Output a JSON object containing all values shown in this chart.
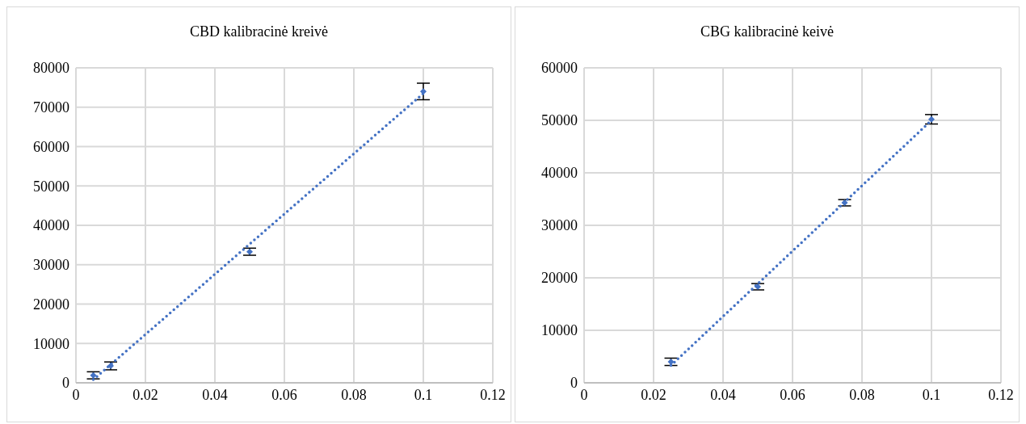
{
  "chart_data": [
    {
      "type": "scatter",
      "title": "CBD kalibracinė kreivė",
      "xlim": [
        0,
        0.12
      ],
      "xticks": [
        0,
        0.02,
        0.04,
        0.06,
        0.08,
        0.1,
        0.12
      ],
      "ylim": [
        0,
        80000
      ],
      "yticks": [
        0,
        10000,
        20000,
        30000,
        40000,
        50000,
        60000,
        70000,
        80000
      ],
      "grid": true,
      "legend": false,
      "series": [
        {
          "type": "scatter",
          "color": "#4472c4",
          "marker": "diamond",
          "x": [
            0.005,
            0.01,
            0.05,
            0.1
          ],
          "values": [
            1900,
            4300,
            33300,
            74000
          ],
          "errors": [
            900,
            1000,
            900,
            2100
          ]
        },
        {
          "type": "line",
          "color": "#4472c4",
          "line_style": "dotted",
          "marker": "none",
          "x": [
            0.005,
            0.1
          ],
          "values": [
            800,
            73500
          ]
        }
      ]
    },
    {
      "type": "scatter",
      "title": "CBG kalibracinė keivė",
      "xlim": [
        0,
        0.12
      ],
      "xticks": [
        0,
        0.02,
        0.04,
        0.06,
        0.08,
        0.1,
        0.12
      ],
      "ylim": [
        0,
        60000
      ],
      "yticks": [
        0,
        10000,
        20000,
        30000,
        40000,
        50000,
        60000
      ],
      "grid": true,
      "legend": false,
      "series": [
        {
          "type": "scatter",
          "color": "#4472c4",
          "marker": "diamond",
          "x": [
            0.025,
            0.05,
            0.075,
            0.1
          ],
          "values": [
            4000,
            18300,
            34300,
            50200
          ],
          "errors": [
            700,
            600,
            600,
            900
          ]
        },
        {
          "type": "line",
          "color": "#4472c4",
          "line_style": "dotted",
          "marker": "none",
          "x": [
            0.025,
            0.1
          ],
          "values": [
            3300,
            50000
          ]
        }
      ]
    }
  ]
}
